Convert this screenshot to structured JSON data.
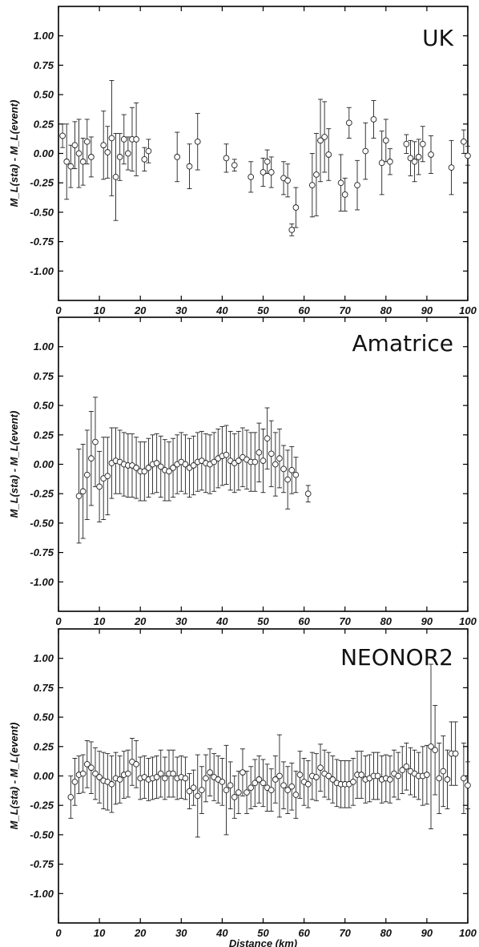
{
  "chart_data": [
    {
      "type": "scatter",
      "title": "UK",
      "xlabel": "",
      "ylabel": "M_L(sta) - M_L(event)",
      "xlim": [
        0,
        100
      ],
      "ylim": [
        -1.25,
        1.25
      ],
      "xticks": [
        0,
        10,
        20,
        30,
        40,
        50,
        60,
        70,
        80,
        90,
        100
      ],
      "yticks": [
        -1.0,
        -0.75,
        -0.5,
        -0.25,
        0.0,
        0.25,
        0.5,
        0.75,
        1.0
      ],
      "xtick_labels": [
        "0",
        "10",
        "20",
        "30",
        "40",
        "50",
        "60",
        "70",
        "80",
        "90",
        "100"
      ],
      "ytick_labels": [
        "-1.00",
        "-0.75",
        "-0.50",
        "-0.25",
        "0.00",
        "0.25",
        "0.50",
        "0.75",
        "1.00"
      ],
      "points": [
        {
          "x": 1,
          "y": 0.15,
          "err": 0.1
        },
        {
          "x": 2,
          "y": -0.07,
          "err": 0.32
        },
        {
          "x": 3,
          "y": -0.11,
          "err": 0.18
        },
        {
          "x": 4,
          "y": 0.07,
          "err": 0.2
        },
        {
          "x": 5,
          "y": 0.0,
          "err": 0.29
        },
        {
          "x": 6,
          "y": -0.07,
          "err": 0.2
        },
        {
          "x": 7,
          "y": 0.1,
          "err": 0.19
        },
        {
          "x": 8,
          "y": -0.03,
          "err": 0.17
        },
        {
          "x": 11,
          "y": 0.07,
          "err": 0.29
        },
        {
          "x": 12,
          "y": 0.01,
          "err": 0.22
        },
        {
          "x": 13,
          "y": 0.13,
          "err": 0.49
        },
        {
          "x": 14,
          "y": -0.2,
          "err": 0.37
        },
        {
          "x": 15,
          "y": -0.03,
          "err": 0.2
        },
        {
          "x": 16,
          "y": 0.12,
          "err": 0.21
        },
        {
          "x": 17,
          "y": 0.0,
          "err": 0.14
        },
        {
          "x": 18,
          "y": 0.12,
          "err": 0.27
        },
        {
          "x": 19,
          "y": 0.12,
          "err": 0.31
        },
        {
          "x": 21,
          "y": -0.05,
          "err": 0.1
        },
        {
          "x": 22,
          "y": 0.02,
          "err": 0.1
        },
        {
          "x": 29,
          "y": -0.03,
          "err": 0.21
        },
        {
          "x": 32,
          "y": -0.11,
          "err": 0.19
        },
        {
          "x": 34,
          "y": 0.1,
          "err": 0.24
        },
        {
          "x": 41,
          "y": -0.04,
          "err": 0.12
        },
        {
          "x": 43,
          "y": -0.1,
          "err": 0.05
        },
        {
          "x": 47,
          "y": -0.2,
          "err": 0.13
        },
        {
          "x": 50,
          "y": -0.16,
          "err": 0.12
        },
        {
          "x": 51,
          "y": -0.07,
          "err": 0.1
        },
        {
          "x": 52,
          "y": -0.16,
          "err": 0.13
        },
        {
          "x": 55,
          "y": -0.21,
          "err": 0.14
        },
        {
          "x": 56,
          "y": -0.23,
          "err": 0.14
        },
        {
          "x": 57,
          "y": -0.65,
          "err": 0.05
        },
        {
          "x": 58,
          "y": -0.46,
          "err": 0.17
        },
        {
          "x": 62,
          "y": -0.27,
          "err": 0.27
        },
        {
          "x": 63,
          "y": -0.18,
          "err": 0.35
        },
        {
          "x": 64,
          "y": 0.11,
          "err": 0.35
        },
        {
          "x": 65,
          "y": 0.14,
          "err": 0.3
        },
        {
          "x": 66,
          "y": -0.01,
          "err": 0.22
        },
        {
          "x": 69,
          "y": -0.25,
          "err": 0.24
        },
        {
          "x": 70,
          "y": -0.35,
          "err": 0.14
        },
        {
          "x": 71,
          "y": 0.26,
          "err": 0.13
        },
        {
          "x": 73,
          "y": -0.27,
          "err": 0.21
        },
        {
          "x": 75,
          "y": 0.02,
          "err": 0.24
        },
        {
          "x": 77,
          "y": 0.29,
          "err": 0.16
        },
        {
          "x": 79,
          "y": -0.08,
          "err": 0.27
        },
        {
          "x": 80,
          "y": 0.11,
          "err": 0.18
        },
        {
          "x": 81,
          "y": -0.07,
          "err": 0.11
        },
        {
          "x": 85,
          "y": 0.08,
          "err": 0.08
        },
        {
          "x": 86,
          "y": -0.04,
          "err": 0.15
        },
        {
          "x": 87,
          "y": -0.07,
          "err": 0.17
        },
        {
          "x": 88,
          "y": -0.03,
          "err": 0.15
        },
        {
          "x": 89,
          "y": 0.08,
          "err": 0.15
        },
        {
          "x": 91,
          "y": -0.01,
          "err": 0.16
        },
        {
          "x": 96,
          "y": -0.12,
          "err": 0.23
        },
        {
          "x": 99,
          "y": 0.1,
          "err": 0.1
        },
        {
          "x": 100,
          "y": -0.02,
          "err": 0.08
        }
      ]
    },
    {
      "type": "scatter",
      "title": "Amatrice",
      "xlabel": "",
      "ylabel": "M_L(sta) - M_L(event)",
      "xlim": [
        0,
        100
      ],
      "ylim": [
        -1.25,
        1.25
      ],
      "xticks": [
        0,
        10,
        20,
        30,
        40,
        50,
        60,
        70,
        80,
        90,
        100
      ],
      "yticks": [
        -1.0,
        -0.75,
        -0.5,
        -0.25,
        0.0,
        0.25,
        0.5,
        0.75,
        1.0
      ],
      "xtick_labels": [
        "0",
        "10",
        "20",
        "30",
        "40",
        "50",
        "60",
        "70",
        "80",
        "90",
        "100"
      ],
      "ytick_labels": [
        "-1.00",
        "-0.75",
        "-0.50",
        "-0.25",
        "0.00",
        "0.25",
        "0.50",
        "0.75",
        "1.00"
      ],
      "points": [
        {
          "x": 5,
          "y": -0.27,
          "err": 0.4
        },
        {
          "x": 6,
          "y": -0.23,
          "err": 0.4
        },
        {
          "x": 7,
          "y": -0.09,
          "err": 0.38
        },
        {
          "x": 8,
          "y": 0.05,
          "err": 0.4
        },
        {
          "x": 9,
          "y": 0.19,
          "err": 0.38
        },
        {
          "x": 10,
          "y": -0.19,
          "err": 0.3
        },
        {
          "x": 11,
          "y": -0.12,
          "err": 0.35
        },
        {
          "x": 12,
          "y": -0.1,
          "err": 0.33
        },
        {
          "x": 13,
          "y": 0.01,
          "err": 0.3
        },
        {
          "x": 14,
          "y": 0.03,
          "err": 0.28
        },
        {
          "x": 15,
          "y": 0.02,
          "err": 0.27
        },
        {
          "x": 16,
          "y": 0.0,
          "err": 0.27
        },
        {
          "x": 17,
          "y": -0.01,
          "err": 0.27
        },
        {
          "x": 18,
          "y": -0.01,
          "err": 0.27
        },
        {
          "x": 19,
          "y": -0.03,
          "err": 0.26
        },
        {
          "x": 20,
          "y": -0.06,
          "err": 0.25
        },
        {
          "x": 21,
          "y": -0.06,
          "err": 0.25
        },
        {
          "x": 22,
          "y": -0.03,
          "err": 0.25
        },
        {
          "x": 23,
          "y": 0.0,
          "err": 0.25
        },
        {
          "x": 24,
          "y": 0.01,
          "err": 0.25
        },
        {
          "x": 25,
          "y": -0.02,
          "err": 0.26
        },
        {
          "x": 26,
          "y": -0.05,
          "err": 0.26
        },
        {
          "x": 27,
          "y": -0.06,
          "err": 0.25
        },
        {
          "x": 28,
          "y": -0.03,
          "err": 0.25
        },
        {
          "x": 29,
          "y": 0.0,
          "err": 0.25
        },
        {
          "x": 30,
          "y": 0.02,
          "err": 0.25
        },
        {
          "x": 31,
          "y": 0.0,
          "err": 0.25
        },
        {
          "x": 32,
          "y": -0.03,
          "err": 0.25
        },
        {
          "x": 33,
          "y": -0.01,
          "err": 0.25
        },
        {
          "x": 34,
          "y": 0.02,
          "err": 0.25
        },
        {
          "x": 35,
          "y": 0.03,
          "err": 0.25
        },
        {
          "x": 36,
          "y": 0.01,
          "err": 0.25
        },
        {
          "x": 37,
          "y": 0.0,
          "err": 0.25
        },
        {
          "x": 38,
          "y": 0.02,
          "err": 0.25
        },
        {
          "x": 39,
          "y": 0.05,
          "err": 0.25
        },
        {
          "x": 40,
          "y": 0.07,
          "err": 0.25
        },
        {
          "x": 41,
          "y": 0.08,
          "err": 0.25
        },
        {
          "x": 42,
          "y": 0.03,
          "err": 0.25
        },
        {
          "x": 43,
          "y": 0.01,
          "err": 0.25
        },
        {
          "x": 44,
          "y": 0.03,
          "err": 0.25
        },
        {
          "x": 45,
          "y": 0.06,
          "err": 0.25
        },
        {
          "x": 46,
          "y": 0.04,
          "err": 0.25
        },
        {
          "x": 47,
          "y": 0.02,
          "err": 0.25
        },
        {
          "x": 48,
          "y": 0.02,
          "err": 0.25
        },
        {
          "x": 49,
          "y": 0.1,
          "err": 0.25
        },
        {
          "x": 50,
          "y": 0.03,
          "err": 0.27
        },
        {
          "x": 51,
          "y": 0.22,
          "err": 0.26
        },
        {
          "x": 52,
          "y": 0.09,
          "err": 0.28
        },
        {
          "x": 53,
          "y": 0.0,
          "err": 0.27
        },
        {
          "x": 54,
          "y": 0.05,
          "err": 0.25
        },
        {
          "x": 55,
          "y": -0.04,
          "err": 0.2
        },
        {
          "x": 56,
          "y": -0.13,
          "err": 0.25
        },
        {
          "x": 57,
          "y": -0.05,
          "err": 0.2
        },
        {
          "x": 58,
          "y": -0.09,
          "err": 0.15
        },
        {
          "x": 61,
          "y": -0.25,
          "err": 0.07
        }
      ]
    },
    {
      "type": "scatter",
      "title": "NEONOR2",
      "xlabel": "Distance (km)",
      "ylabel": "M_L(sta) - M_L(event)",
      "xlim": [
        0,
        100
      ],
      "ylim": [
        -1.25,
        1.25
      ],
      "xticks": [
        0,
        10,
        20,
        30,
        40,
        50,
        60,
        70,
        80,
        90,
        100
      ],
      "yticks": [
        -1.0,
        -0.75,
        -0.5,
        -0.25,
        0.0,
        0.25,
        0.5,
        0.75,
        1.0
      ],
      "xtick_labels": [
        "0",
        "10",
        "20",
        "30",
        "40",
        "50",
        "60",
        "70",
        "80",
        "90",
        "100"
      ],
      "ytick_labels": [
        "-1.00",
        "-0.75",
        "-0.50",
        "-0.25",
        "0.00",
        "0.25",
        "0.50",
        "0.75",
        "1.00"
      ],
      "points": [
        {
          "x": 3,
          "y": -0.18,
          "err": 0.18
        },
        {
          "x": 4,
          "y": -0.05,
          "err": 0.2
        },
        {
          "x": 5,
          "y": 0.01,
          "err": 0.16
        },
        {
          "x": 6,
          "y": 0.02,
          "err": 0.16
        },
        {
          "x": 7,
          "y": 0.1,
          "err": 0.2
        },
        {
          "x": 8,
          "y": 0.07,
          "err": 0.22
        },
        {
          "x": 9,
          "y": 0.02,
          "err": 0.22
        },
        {
          "x": 10,
          "y": -0.01,
          "err": 0.22
        },
        {
          "x": 11,
          "y": -0.04,
          "err": 0.24
        },
        {
          "x": 12,
          "y": -0.05,
          "err": 0.24
        },
        {
          "x": 13,
          "y": -0.07,
          "err": 0.24
        },
        {
          "x": 14,
          "y": -0.02,
          "err": 0.22
        },
        {
          "x": 15,
          "y": -0.03,
          "err": 0.2
        },
        {
          "x": 16,
          "y": 0.01,
          "err": 0.2
        },
        {
          "x": 17,
          "y": 0.02,
          "err": 0.2
        },
        {
          "x": 18,
          "y": 0.12,
          "err": 0.2
        },
        {
          "x": 19,
          "y": 0.1,
          "err": 0.2
        },
        {
          "x": 20,
          "y": -0.02,
          "err": 0.18
        },
        {
          "x": 21,
          "y": -0.01,
          "err": 0.18
        },
        {
          "x": 22,
          "y": -0.03,
          "err": 0.18
        },
        {
          "x": 23,
          "y": -0.02,
          "err": 0.18
        },
        {
          "x": 24,
          "y": -0.01,
          "err": 0.18
        },
        {
          "x": 25,
          "y": 0.02,
          "err": 0.2
        },
        {
          "x": 26,
          "y": -0.02,
          "err": 0.18
        },
        {
          "x": 27,
          "y": 0.02,
          "err": 0.2
        },
        {
          "x": 28,
          "y": 0.02,
          "err": 0.2
        },
        {
          "x": 29,
          "y": -0.02,
          "err": 0.18
        },
        {
          "x": 30,
          "y": -0.01,
          "err": 0.18
        },
        {
          "x": 31,
          "y": -0.02,
          "err": 0.18
        },
        {
          "x": 32,
          "y": -0.13,
          "err": 0.15
        },
        {
          "x": 33,
          "y": -0.1,
          "err": 0.15
        },
        {
          "x": 34,
          "y": -0.17,
          "err": 0.35
        },
        {
          "x": 35,
          "y": -0.12,
          "err": 0.2
        },
        {
          "x": 36,
          "y": -0.02,
          "err": 0.2
        },
        {
          "x": 37,
          "y": 0.03,
          "err": 0.2
        },
        {
          "x": 38,
          "y": -0.01,
          "err": 0.2
        },
        {
          "x": 39,
          "y": -0.03,
          "err": 0.2
        },
        {
          "x": 40,
          "y": -0.05,
          "err": 0.2
        },
        {
          "x": 41,
          "y": -0.12,
          "err": 0.38
        },
        {
          "x": 42,
          "y": -0.08,
          "err": 0.2
        },
        {
          "x": 43,
          "y": -0.18,
          "err": 0.18
        },
        {
          "x": 44,
          "y": -0.14,
          "err": 0.18
        },
        {
          "x": 45,
          "y": 0.03,
          "err": 0.2
        },
        {
          "x": 46,
          "y": -0.14,
          "err": 0.18
        },
        {
          "x": 47,
          "y": -0.1,
          "err": 0.18
        },
        {
          "x": 48,
          "y": -0.06,
          "err": 0.2
        },
        {
          "x": 49,
          "y": -0.03,
          "err": 0.2
        },
        {
          "x": 50,
          "y": -0.06,
          "err": 0.2
        },
        {
          "x": 51,
          "y": -0.1,
          "err": 0.2
        },
        {
          "x": 52,
          "y": -0.12,
          "err": 0.18
        },
        {
          "x": 53,
          "y": -0.03,
          "err": 0.2
        },
        {
          "x": 54,
          "y": 0.0,
          "err": 0.35
        },
        {
          "x": 55,
          "y": -0.08,
          "err": 0.2
        },
        {
          "x": 56,
          "y": -0.12,
          "err": 0.2
        },
        {
          "x": 57,
          "y": -0.09,
          "err": 0.2
        },
        {
          "x": 58,
          "y": -0.16,
          "err": 0.2
        },
        {
          "x": 59,
          "y": 0.01,
          "err": 0.2
        },
        {
          "x": 60,
          "y": -0.05,
          "err": 0.2
        },
        {
          "x": 61,
          "y": -0.07,
          "err": 0.2
        },
        {
          "x": 62,
          "y": 0.0,
          "err": 0.2
        },
        {
          "x": 63,
          "y": -0.01,
          "err": 0.2
        },
        {
          "x": 64,
          "y": 0.07,
          "err": 0.2
        },
        {
          "x": 65,
          "y": 0.02,
          "err": 0.2
        },
        {
          "x": 66,
          "y": 0.0,
          "err": 0.2
        },
        {
          "x": 67,
          "y": -0.03,
          "err": 0.2
        },
        {
          "x": 68,
          "y": -0.06,
          "err": 0.2
        },
        {
          "x": 69,
          "y": -0.07,
          "err": 0.2
        },
        {
          "x": 70,
          "y": -0.07,
          "err": 0.2
        },
        {
          "x": 71,
          "y": -0.07,
          "err": 0.2
        },
        {
          "x": 72,
          "y": -0.05,
          "err": 0.2
        },
        {
          "x": 73,
          "y": 0.01,
          "err": 0.2
        },
        {
          "x": 74,
          "y": 0.01,
          "err": 0.2
        },
        {
          "x": 75,
          "y": -0.03,
          "err": 0.2
        },
        {
          "x": 76,
          "y": -0.02,
          "err": 0.2
        },
        {
          "x": 77,
          "y": 0.0,
          "err": 0.2
        },
        {
          "x": 78,
          "y": 0.0,
          "err": 0.2
        },
        {
          "x": 79,
          "y": -0.03,
          "err": 0.2
        },
        {
          "x": 80,
          "y": -0.02,
          "err": 0.2
        },
        {
          "x": 81,
          "y": -0.03,
          "err": 0.2
        },
        {
          "x": 82,
          "y": 0.02,
          "err": 0.2
        },
        {
          "x": 83,
          "y": 0.0,
          "err": 0.2
        },
        {
          "x": 84,
          "y": 0.05,
          "err": 0.2
        },
        {
          "x": 85,
          "y": 0.08,
          "err": 0.2
        },
        {
          "x": 86,
          "y": 0.04,
          "err": 0.2
        },
        {
          "x": 87,
          "y": 0.02,
          "err": 0.2
        },
        {
          "x": 88,
          "y": 0.0,
          "err": 0.2
        },
        {
          "x": 89,
          "y": 0.0,
          "err": 0.25
        },
        {
          "x": 90,
          "y": 0.01,
          "err": 0.25
        },
        {
          "x": 91,
          "y": 0.25,
          "err": 0.7
        },
        {
          "x": 92,
          "y": 0.22,
          "err": 0.38
        },
        {
          "x": 93,
          "y": -0.02,
          "err": 0.3
        },
        {
          "x": 94,
          "y": 0.04,
          "err": 0.3
        },
        {
          "x": 95,
          "y": -0.03,
          "err": 0.25
        },
        {
          "x": 96,
          "y": 0.19,
          "err": 0.27
        },
        {
          "x": 97,
          "y": 0.19,
          "err": 0.27
        },
        {
          "x": 99,
          "y": -0.02,
          "err": 0.3
        },
        {
          "x": 100,
          "y": -0.08,
          "err": 0.2
        }
      ]
    }
  ]
}
